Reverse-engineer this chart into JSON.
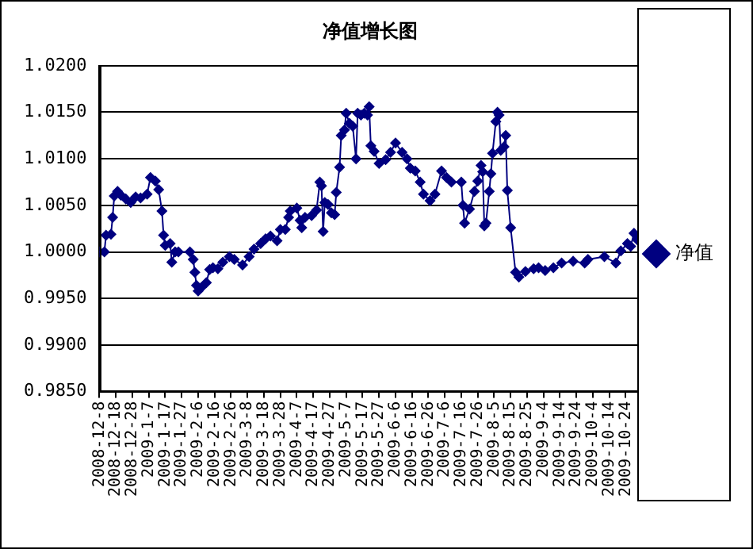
{
  "chart_data": {
    "type": "line",
    "title": "净值增长图",
    "x": [
      "2008-12-08",
      "2008-12-11",
      "2008-12-12",
      "2008-12-15",
      "2008-12-16",
      "2008-12-17",
      "2008-12-19",
      "2008-12-21",
      "2008-12-24",
      "2008-12-27",
      "2008-12-30",
      "2009-01-02",
      "2009-01-06",
      "2009-01-08",
      "2009-01-11",
      "2009-01-13",
      "2009-01-15",
      "2009-01-16",
      "2009-01-17",
      "2009-01-20",
      "2009-01-21",
      "2009-01-23",
      "2009-01-25",
      "2009-02-01",
      "2009-02-03",
      "2009-02-04",
      "2009-02-05",
      "2009-02-06",
      "2009-02-08",
      "2009-02-11",
      "2009-02-13",
      "2009-02-15",
      "2009-02-18",
      "2009-02-21",
      "2009-02-25",
      "2009-02-28",
      "2009-03-05",
      "2009-03-09",
      "2009-03-12",
      "2009-03-16",
      "2009-03-19",
      "2009-03-22",
      "2009-03-26",
      "2009-03-28",
      "2009-03-31",
      "2009-04-02",
      "2009-04-03",
      "2009-04-07",
      "2009-04-09",
      "2009-04-10",
      "2009-04-12",
      "2009-04-16",
      "2009-04-19",
      "2009-04-21",
      "2009-04-22",
      "2009-04-23",
      "2009-04-24",
      "2009-04-26",
      "2009-04-28",
      "2009-04-30",
      "2009-05-01",
      "2009-05-03",
      "2009-05-04",
      "2009-05-06",
      "2009-05-07",
      "2009-05-09",
      "2009-05-11",
      "2009-05-13",
      "2009-05-14",
      "2009-05-16",
      "2009-05-18",
      "2009-05-20",
      "2009-05-21",
      "2009-05-22",
      "2009-05-24",
      "2009-05-27",
      "2009-05-31",
      "2009-06-03",
      "2009-06-06",
      "2009-06-10",
      "2009-06-13",
      "2009-06-15",
      "2009-06-18",
      "2009-06-21",
      "2009-06-23",
      "2009-06-27",
      "2009-06-30",
      "2009-07-04",
      "2009-07-07",
      "2009-07-10",
      "2009-07-16",
      "2009-07-17",
      "2009-07-18",
      "2009-07-21",
      "2009-07-24",
      "2009-07-26",
      "2009-07-28",
      "2009-07-29",
      "2009-07-30",
      "2009-07-31",
      "2009-08-02",
      "2009-08-03",
      "2009-08-04",
      "2009-08-06",
      "2009-08-07",
      "2009-08-08",
      "2009-08-09",
      "2009-08-11",
      "2009-08-12",
      "2009-08-13",
      "2009-08-15",
      "2009-08-18",
      "2009-08-20",
      "2009-08-24",
      "2009-08-29",
      "2009-09-01",
      "2009-09-05",
      "2009-09-10",
      "2009-09-15",
      "2009-09-22",
      "2009-09-29",
      "2009-10-01",
      "2009-10-11",
      "2009-10-18",
      "2009-10-21",
      "2009-10-25",
      "2009-10-27",
      "2009-10-29",
      "2009-10-31"
    ],
    "series": [
      {
        "name": "净值",
        "color": "#000080",
        "values": [
          1.0,
          1.0,
          1.0018,
          1.0019,
          1.0037,
          1.006,
          1.0065,
          1.0061,
          1.0057,
          1.0053,
          1.0059,
          1.0058,
          1.0062,
          1.008,
          1.0076,
          1.0067,
          1.0044,
          1.0018,
          1.0007,
          1.0009,
          0.9989,
          1.0,
          1.0,
          1.0,
          0.9992,
          0.9978,
          0.9964,
          0.9958,
          0.9962,
          0.9967,
          0.9981,
          0.9983,
          0.9982,
          0.9989,
          0.9995,
          0.9992,
          0.9986,
          0.9995,
          1.0003,
          1.0009,
          1.0014,
          1.0017,
          1.0012,
          1.0024,
          1.0024,
          1.0037,
          1.0044,
          1.0047,
          1.0034,
          1.0026,
          1.0037,
          1.0039,
          1.0045,
          1.0075,
          1.0071,
          1.0022,
          1.0053,
          1.0051,
          1.0042,
          1.004,
          1.0064,
          1.0091,
          1.0125,
          1.0131,
          1.0149,
          1.0138,
          1.0135,
          1.01,
          1.0149,
          1.0147,
          1.0149,
          1.0147,
          1.0156,
          1.0114,
          1.0108,
          1.0095,
          1.0099,
          1.0107,
          1.0117,
          1.0107,
          1.01,
          1.009,
          1.0087,
          1.0075,
          1.0062,
          1.0055,
          1.0062,
          1.0087,
          1.008,
          1.0075,
          1.0075,
          1.005,
          1.0031,
          1.0046,
          1.0065,
          1.0076,
          1.0093,
          1.0086,
          1.0028,
          1.0031,
          1.0065,
          1.0084,
          1.0106,
          1.014,
          1.015,
          1.0147,
          1.0109,
          1.0113,
          1.0125,
          1.0066,
          1.0026,
          0.9978,
          0.9973,
          0.9979,
          0.9982,
          0.9983,
          0.998,
          0.9983,
          0.9988,
          0.999,
          0.9988,
          0.9992,
          0.9995,
          0.9988,
          1.0001,
          1.0009,
          1.0006,
          1.002,
          1.0013
        ]
      }
    ],
    "xlim": [
      "2008-12-08",
      "2009-10-31"
    ],
    "xticks": [
      {
        "value": "2008-12-08",
        "label": "2008-12-8"
      },
      {
        "value": "2008-12-18",
        "label": "2008-12-18"
      },
      {
        "value": "2008-12-28",
        "label": "2008-12-28"
      },
      {
        "value": "2009-01-07",
        "label": "2009-1-7"
      },
      {
        "value": "2009-01-17",
        "label": "2009-1-17"
      },
      {
        "value": "2009-01-27",
        "label": "2009-1-27"
      },
      {
        "value": "2009-02-06",
        "label": "2009-2-6"
      },
      {
        "value": "2009-02-16",
        "label": "2009-2-16"
      },
      {
        "value": "2009-02-26",
        "label": "2009-2-26"
      },
      {
        "value": "2009-03-08",
        "label": "2009-3-8"
      },
      {
        "value": "2009-03-18",
        "label": "2009-3-18"
      },
      {
        "value": "2009-03-28",
        "label": "2009-3-28"
      },
      {
        "value": "2009-04-07",
        "label": "2009-4-7"
      },
      {
        "value": "2009-04-17",
        "label": "2009-4-17"
      },
      {
        "value": "2009-04-27",
        "label": "2009-4-27"
      },
      {
        "value": "2009-05-07",
        "label": "2009-5-7"
      },
      {
        "value": "2009-05-17",
        "label": "2009-5-17"
      },
      {
        "value": "2009-05-27",
        "label": "2009-5-27"
      },
      {
        "value": "2009-06-06",
        "label": "2009-6-6"
      },
      {
        "value": "2009-06-16",
        "label": "2009-6-16"
      },
      {
        "value": "2009-06-26",
        "label": "2009-6-26"
      },
      {
        "value": "2009-07-06",
        "label": "2009-7-6"
      },
      {
        "value": "2009-07-16",
        "label": "2009-7-16"
      },
      {
        "value": "2009-07-26",
        "label": "2009-7-26"
      },
      {
        "value": "2009-08-05",
        "label": "2009-8-5"
      },
      {
        "value": "2009-08-15",
        "label": "2009-8-15"
      },
      {
        "value": "2009-08-25",
        "label": "2009-8-25"
      },
      {
        "value": "2009-09-04",
        "label": "2009-9-4"
      },
      {
        "value": "2009-09-14",
        "label": "2009-9-14"
      },
      {
        "value": "2009-09-24",
        "label": "2009-9-24"
      },
      {
        "value": "2009-10-04",
        "label": "2009-10-4"
      },
      {
        "value": "2009-10-14",
        "label": "2009-10-14"
      },
      {
        "value": "2009-10-24",
        "label": "2009-10-24"
      }
    ],
    "ylim": [
      0.985,
      1.02
    ],
    "yticks": [
      {
        "value": 0.985,
        "label": "0.9850"
      },
      {
        "value": 0.99,
        "label": "0.9900"
      },
      {
        "value": 0.995,
        "label": "0.9950"
      },
      {
        "value": 1,
        "label": "1.0000"
      },
      {
        "value": 1.005,
        "label": "1.0050"
      },
      {
        "value": 1.01,
        "label": "1.0100"
      },
      {
        "value": 1.015,
        "label": "1.0150"
      },
      {
        "value": 1.02,
        "label": "1.0200"
      }
    ],
    "grid": "y",
    "legend": "right",
    "marker": "diamond",
    "line_style": "solid"
  }
}
